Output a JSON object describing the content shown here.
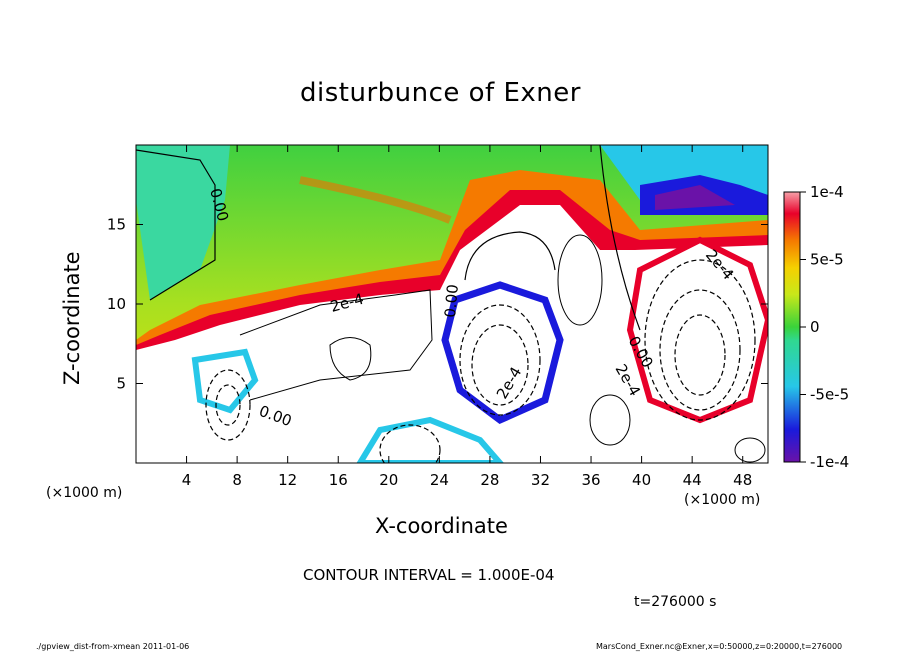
{
  "title": "disturbunce of Exner",
  "footer": {
    "left": "./gpview_dist-from-xmean  2011-01-06",
    "right": "MarsCond_Exner.nc@Exner,x=0:50000,z=0:20000,t=276000"
  },
  "contour_interval": "CONTOUR INTERVAL = 1.000E-04",
  "time_label": "t=276000 s",
  "colors": {
    "positive_high": "#e8002a",
    "positive_mid": "#f5a000",
    "zero": "#3ad33a",
    "negative_mid": "#27c7e8",
    "negative_high": "#6a12a8"
  },
  "chart_data": {
    "type": "heatmap",
    "title": "disturbunce of Exner",
    "xlabel": "X-coordinate",
    "ylabel": "Z-coordinate",
    "x_unit": "(×1000 m)",
    "z_unit": "",
    "xlim": [
      0,
      50
    ],
    "zlim": [
      0,
      20
    ],
    "x_ticks": [
      "4",
      "8",
      "12",
      "16",
      "20",
      "24",
      "28",
      "32",
      "36",
      "40",
      "44",
      "48"
    ],
    "z_ticks": [
      "5",
      "10",
      "15"
    ],
    "colorbar": {
      "range": [
        -0.0001,
        0.0001
      ],
      "tick_labels": [
        "1e-4",
        "5e-5",
        "0",
        "-5e-5",
        "-1e-4"
      ]
    },
    "contour_labels": [
      "0.00",
      "2e-4",
      "0.00",
      "2e-4",
      "0.00",
      "2e-4",
      "2e-4",
      "0.00"
    ],
    "contour_interval": "1.000E-04",
    "time": "t=276000 s",
    "grid": false
  }
}
